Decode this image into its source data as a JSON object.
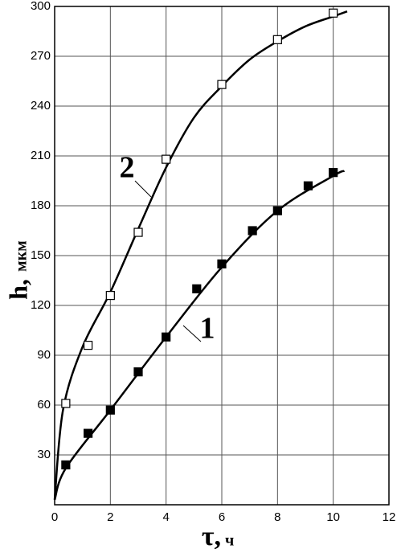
{
  "chart_data": {
    "type": "line",
    "xlabel": "τ,",
    "xunit": "ч",
    "ylabel": "h,",
    "yunit": "мкм",
    "xlim": [
      0,
      12
    ],
    "xticks": [
      0,
      2,
      4,
      6,
      8,
      10,
      12
    ],
    "ylim": [
      0,
      300
    ],
    "yticks": [
      30,
      60,
      90,
      120,
      150,
      180,
      210,
      240,
      270,
      300
    ],
    "grid": true,
    "series": [
      {
        "name": "1",
        "color": "#000000",
        "marker": "filled-square",
        "x": [
          0.4,
          1.2,
          2.0,
          3.0,
          4.0,
          5.1,
          6.0,
          7.1,
          8.0,
          9.1,
          10.0
        ],
        "values": [
          24,
          43,
          57,
          80,
          101,
          130,
          145,
          165,
          177,
          192,
          200
        ],
        "curve_x": [
          0,
          0.4,
          2,
          4,
          6,
          8,
          10,
          10.4
        ],
        "curve_y": [
          3,
          22,
          57,
          101,
          143,
          177,
          198,
          201
        ]
      },
      {
        "name": "2",
        "color": "#000000",
        "marker": "open-square",
        "x": [
          0.4,
          1.2,
          2.0,
          3.0,
          4.0,
          6.0,
          8.0,
          10.0
        ],
        "values": [
          61,
          96,
          126,
          164,
          208,
          253,
          280,
          296
        ],
        "curve_x": [
          0,
          0.3,
          1,
          2,
          3,
          4,
          5,
          6,
          7,
          8,
          9,
          10,
          10.5
        ],
        "curve_y": [
          3,
          57,
          95,
          128,
          166,
          203,
          233,
          252,
          268,
          279,
          288,
          294,
          297
        ]
      }
    ]
  }
}
